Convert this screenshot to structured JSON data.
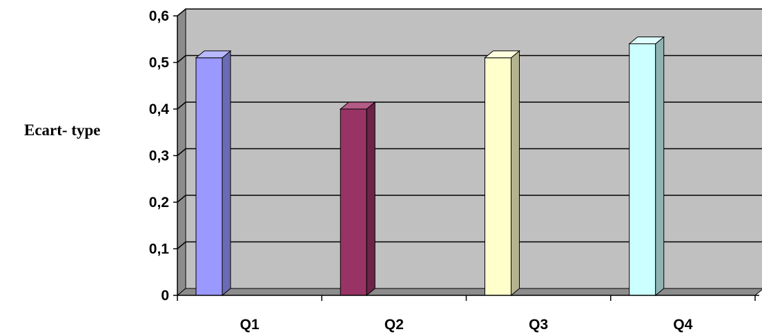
{
  "chart_data": {
    "type": "bar",
    "title": "",
    "xlabel": "",
    "ylabel": "Ecart- type",
    "categories": [
      "Q1",
      "Q2",
      "Q3",
      "Q4"
    ],
    "values": [
      0.51,
      0.4,
      0.51,
      0.54
    ],
    "ylim": [
      0,
      0.6
    ],
    "yticks": [
      0,
      0.1,
      0.2,
      0.3,
      0.4,
      0.5,
      0.6
    ],
    "ytick_labels": [
      "0",
      "0,1",
      "0,2",
      "0,3",
      "0,4",
      "0,5",
      "0,6"
    ],
    "grid": true,
    "legend": false,
    "bar_colors": [
      "#9999ff",
      "#993366",
      "#ffffcc",
      "#ccffff"
    ],
    "bar_side_colors": [
      "#6b6bb3",
      "#6b2447",
      "#b3b38f",
      "#8fb3b3"
    ],
    "bar_top_colors": [
      "#b8b8ff",
      "#b35c85",
      "#ffffe0",
      "#e0ffff"
    ],
    "plot_background": "#c0c0c0"
  }
}
